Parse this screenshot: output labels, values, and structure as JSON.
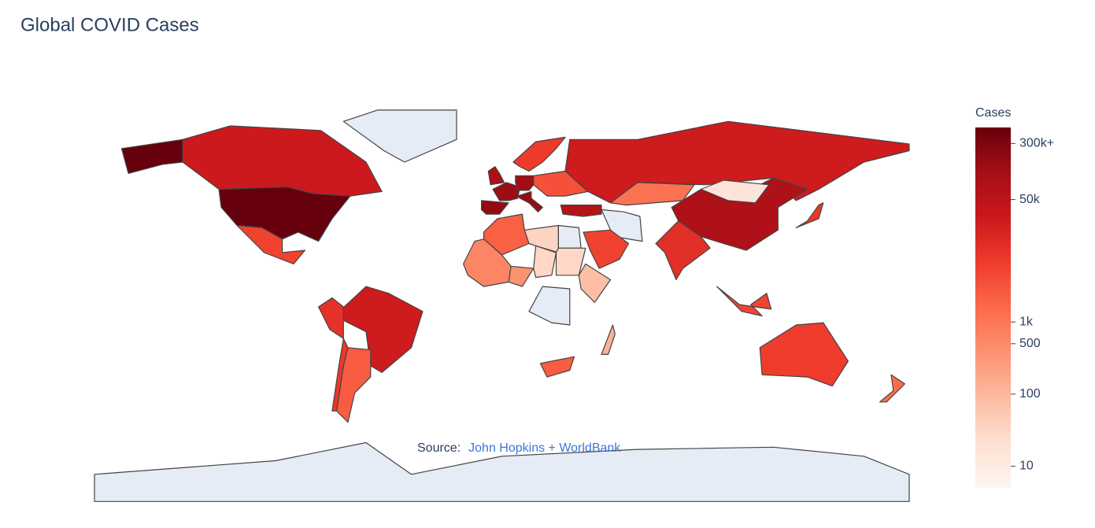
{
  "chart_data": {
    "type": "choropleth",
    "title": "Global COVID Cases",
    "colorbar_title": "Cases",
    "values": [
      600000,
      27000,
      null,
      5400,
      25000,
      2400,
      10000,
      8000,
      null,
      25000,
      83000,
      16,
      1200,
      11000,
      null,
      5300,
      65000,
      175000,
      140000,
      133000,
      162000,
      94000,
      7000,
      3400,
      2100,
      35,
      null,
      370,
      30,
      30,
      null,
      2400,
      120,
      600,
      80,
      6400,
      5000,
      8000,
      1400
    ],
    "log_scale": true,
    "clim": [
      5,
      500000
    ],
    "colorscale": [
      "#fff5f0",
      "#fee0d2",
      "#fcbba1",
      "#fc9272",
      "#fb6a4a",
      "#ef3b2c",
      "#cb181d",
      "#a50f15",
      "#67000d"
    ],
    "missing_color": "#e5ecf6",
    "ticks": [
      {
        "value": 300000,
        "label": "300k+"
      },
      {
        "value": 50000,
        "label": "50k"
      },
      {
        "value": 1000,
        "label": "1k"
      },
      500,
      100,
      10
    ],
    "annotation": {
      "prefix": "Source:",
      "link": "John Hopkins + WorldBank"
    }
  }
}
